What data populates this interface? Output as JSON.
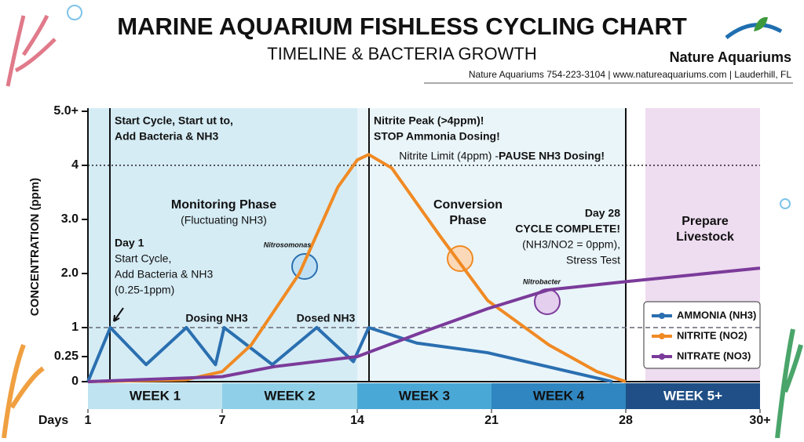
{
  "header": {
    "title": "MARINE AQUARIUM FISHLESS CYCLING CHART",
    "subtitle": "TIMELINE & BACTERIA GROWTH",
    "brand": "Nature Aquariums",
    "contact": "Nature Aquariums 754-223-3104 | www.natureaquariums.com | Lauderhill, FL"
  },
  "chart_data": {
    "type": "line",
    "ylabel": "CONCENTRATION (ppm)",
    "xlabel": "Days",
    "xlim": [
      1,
      30
    ],
    "xticks": [
      1,
      7,
      14,
      21,
      28,
      {
        "value": 30,
        "label": "30+"
      }
    ],
    "ylim": [
      0,
      5
    ],
    "yticks": [
      0,
      0.25,
      1,
      {
        "value": 2,
        "label": "2.0"
      },
      {
        "value": 3,
        "label": "3.0"
      },
      4,
      {
        "value": 5,
        "label": "5.0+"
      }
    ],
    "reference_lines": [
      4,
      1
    ],
    "weeks": [
      "WEEK 1",
      "WEEK 2",
      "WEEK 3",
      "WEEK 4",
      "WEEK 5+"
    ],
    "series": [
      {
        "name": "AMMONIA (NH3)",
        "color": "#2a6fb0",
        "x": [
          1,
          2,
          3.6,
          5.4,
          6.7,
          7.1,
          9.6,
          11.9,
          13.8,
          14.6,
          17.1,
          20.8,
          27.3
        ],
        "values": [
          0,
          1,
          0.17,
          1,
          0.17,
          1,
          0.17,
          1,
          0.2,
          1,
          0.6,
          0.35,
          0
        ]
      },
      {
        "name": "NITRITE (NO2)",
        "color": "#f08a24",
        "x": [
          1,
          5.4,
          7,
          8.5,
          11,
          13,
          14,
          14.6,
          15.8,
          18.3,
          20.8,
          24,
          26.5,
          28
        ],
        "values": [
          0,
          0.02,
          0.1,
          0.55,
          2,
          3.6,
          4.1,
          4.2,
          3.95,
          2.7,
          1.5,
          0.55,
          0.1,
          0
        ]
      },
      {
        "name": "NITRATE (NO3)",
        "color": "#7b3b9a",
        "x": [
          1,
          7,
          9.7,
          14,
          17.5,
          20.8,
          24,
          28,
          30
        ],
        "values": [
          0,
          0.05,
          0.15,
          0.25,
          0.9,
          1.35,
          1.7,
          1.85,
          2.1
        ]
      }
    ],
    "annotations": [
      {
        "lines": [
          "Start Cycle, Start ut to,",
          "Add Bacteria & NH3"
        ]
      },
      {
        "lines": [
          "Nitrite Peak (>4ppm)!",
          "STOP Ammonia Dosing!"
        ]
      },
      {
        "lines": [
          "Nitrite Limit (4ppm) - "
        ]
      },
      {
        "lines": [
          "PAUSE NH3 Dosing!"
        ]
      },
      {
        "lines": [
          "Monitoring Phase"
        ]
      },
      {
        "lines": [
          "(Fluctuating NH3)"
        ]
      },
      {
        "lines": [
          "Day 1"
        ]
      },
      {
        "lines": [
          "Start Cycle,",
          "Add Bacteria & NH3",
          "(0.25-1ppm)"
        ]
      },
      {
        "lines": [
          "Dosing NH3"
        ]
      },
      {
        "lines": [
          "Dosed NH3"
        ]
      },
      {
        "lines": [
          "Conversion",
          "Phase"
        ]
      },
      {
        "lines": [
          "Day 28",
          "CYCLE COMPLETE!"
        ]
      },
      {
        "lines": [
          "(NH3/NO2 = 0ppm),",
          "Stress Test"
        ]
      },
      {
        "lines": [
          "Prepare",
          "Livestock"
        ]
      },
      {
        "lines": [
          "Nitrosomonas"
        ]
      },
      {
        "lines": [
          "Nitrobacter"
        ]
      }
    ]
  }
}
